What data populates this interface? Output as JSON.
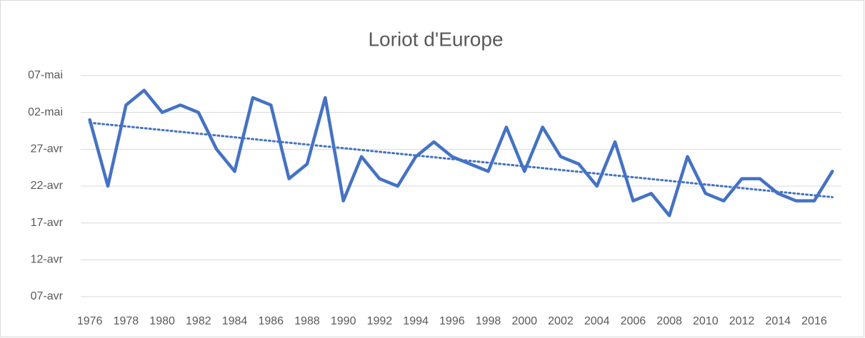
{
  "chart_data": {
    "type": "line",
    "title": "Loriot d'Europe",
    "categories": [
      "1976",
      null,
      "1978",
      null,
      "1980",
      null,
      "1982",
      null,
      "1984",
      null,
      "1986",
      null,
      "1988",
      null,
      "1990",
      null,
      "1992",
      null,
      "1994",
      null,
      "1996",
      null,
      "1998",
      null,
      "2000",
      null,
      "2002",
      null,
      "2004",
      null,
      "2006",
      null,
      "2008",
      null,
      "2010",
      null,
      "2012",
      null,
      "2014",
      null,
      "2016",
      null
    ],
    "series": [
      {
        "color": "#4472c4",
        "values": [
          121,
          112,
          123,
          125,
          122,
          123,
          122,
          117,
          114,
          124,
          123,
          113,
          115,
          124,
          110,
          116,
          113,
          112,
          116,
          118,
          116,
          115,
          114,
          120,
          114,
          120,
          116,
          115,
          112,
          118,
          110,
          111,
          108,
          116,
          111,
          110,
          113,
          113,
          111,
          110,
          110,
          114
        ]
      }
    ],
    "trendline": {
      "start": 120.6,
      "end": 110.5,
      "color": "#4472c4",
      "style": "dotted"
    },
    "ylim": [
      97,
      127
    ],
    "yticks": [
      {
        "value": 97,
        "label": "07-avr"
      },
      {
        "value": 102,
        "label": "12-avr"
      },
      {
        "value": 107,
        "label": "17-avr"
      },
      {
        "value": 112,
        "label": "22-avr"
      },
      {
        "value": 117,
        "label": "27-avr"
      },
      {
        "value": 122,
        "label": "02-mai"
      },
      {
        "value": 127,
        "label": "07-mai"
      }
    ],
    "grid": true
  }
}
